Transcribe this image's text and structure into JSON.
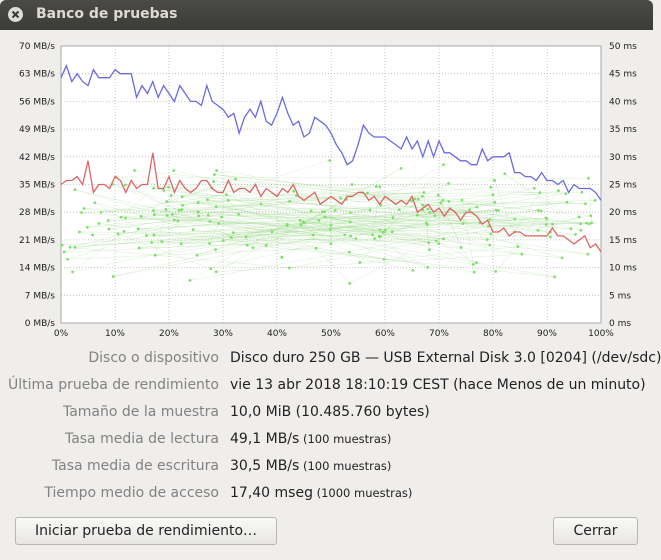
{
  "window": {
    "title": "Banco de pruebas"
  },
  "chart_data": {
    "type": "line",
    "y_left_ticks": [
      "70 MB/s",
      "63 MB/s",
      "56 MB/s",
      "49 MB/s",
      "42 MB/s",
      "35 MB/s",
      "28 MB/s",
      "21 MB/s",
      "14 MB/s",
      "7 MB/s",
      "0 MB/s"
    ],
    "y_right_ticks": [
      "50 ms",
      "45 ms",
      "40 ms",
      "35 ms",
      "30 ms",
      "25 ms",
      "20 ms",
      "15 ms",
      "10 ms",
      "5 ms",
      "0 ms"
    ],
    "x_ticks": [
      "0%",
      "10%",
      "20%",
      "30%",
      "40%",
      "50%",
      "60%",
      "70%",
      "80%",
      "90%",
      "100%"
    ],
    "ylim_left": [
      0,
      70
    ],
    "ylim_right": [
      0,
      50
    ],
    "xlim": [
      0,
      100
    ],
    "grid": true,
    "series": [
      {
        "color": "#6a6ae4",
        "values": [
          62,
          65,
          61,
          63,
          61,
          60,
          64,
          62,
          62,
          62,
          64,
          63,
          63,
          63,
          57,
          60,
          58,
          61,
          57,
          60,
          58,
          56,
          60,
          58,
          56,
          56,
          55,
          60,
          56,
          55,
          54,
          52,
          53,
          48,
          52,
          54,
          52,
          56,
          51,
          50,
          53,
          57,
          53,
          50,
          51,
          47,
          48,
          52,
          51,
          50,
          48,
          45,
          43,
          40,
          41,
          45,
          50,
          48,
          47,
          47,
          47,
          46,
          45,
          44,
          47,
          44,
          46,
          42,
          46,
          42,
          46,
          43,
          43,
          42,
          41,
          41,
          40,
          40,
          44,
          41,
          42,
          42,
          42,
          43,
          38,
          38,
          37,
          37,
          36,
          38,
          36,
          36,
          35,
          36,
          33,
          35,
          34,
          34,
          34,
          33,
          31
        ]
      },
      {
        "color": "#e06464",
        "values": [
          35,
          36,
          36,
          37,
          35,
          41,
          33,
          35,
          35,
          34,
          37,
          36,
          33,
          36,
          34,
          35,
          35,
          43,
          34,
          34,
          37,
          33,
          36,
          34,
          33,
          34,
          36,
          36,
          34,
          33,
          33,
          36,
          33,
          34,
          34,
          33,
          35,
          32,
          34,
          33,
          32,
          34,
          33,
          35,
          32,
          31,
          32,
          33,
          30,
          31,
          32,
          31,
          30,
          32,
          32,
          33,
          33,
          31,
          32,
          30,
          32,
          31,
          30,
          31,
          30,
          32,
          28,
          29,
          30,
          28,
          29,
          27,
          29,
          28,
          26,
          28,
          28,
          27,
          25,
          26,
          23,
          23,
          24,
          22,
          23,
          23,
          22,
          22,
          22,
          22,
          22,
          24,
          22,
          22,
          21,
          20,
          21,
          22,
          19,
          20,
          18
        ]
      }
    ],
    "scatter": {
      "color": "#7ee06a",
      "points": 1000,
      "y_range_ms": [
        5,
        32
      ]
    }
  },
  "info": {
    "rows": [
      {
        "label": "Disco o dispositivo",
        "value": "Disco duro 250 GB — USB External Disk 3.0 [0204] (/dev/sdc)",
        "note": ""
      },
      {
        "label": "Última prueba de rendimiento",
        "value": "vie 13 abr 2018 18:10:19 CEST (hace Menos de un minuto)",
        "note": ""
      },
      {
        "label": "Tamaño de la muestra",
        "value": "10,0 MiB (10.485.760 bytes)",
        "note": ""
      },
      {
        "label": "Tasa media de lectura",
        "value": "49,1 MB/s",
        "note": "(100 muestras)"
      },
      {
        "label": "Tasa media de escritura",
        "value": "30,5 MB/s",
        "note": "(100 muestras)"
      },
      {
        "label": "Tiempo medio de acceso",
        "value": "17,40 mseg",
        "note": "(1000 muestras)"
      }
    ]
  },
  "buttons": {
    "start": "Iniciar prueba de rendimiento…",
    "close": "Cerrar"
  }
}
